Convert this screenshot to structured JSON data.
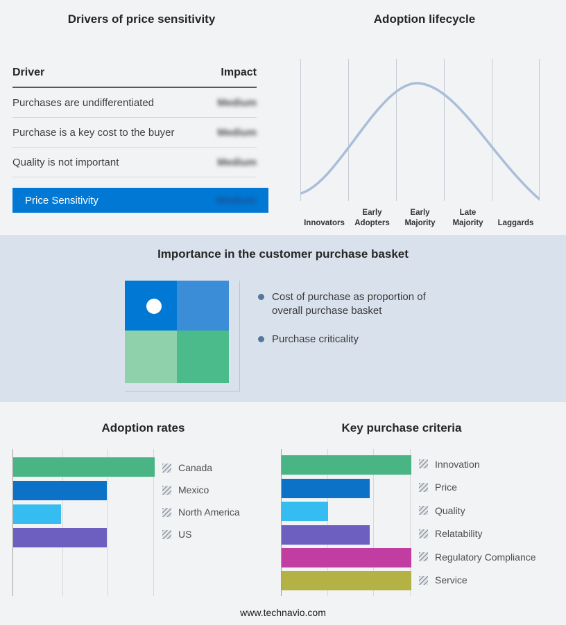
{
  "page": {
    "footer": "www.technavio.com"
  },
  "drivers": {
    "title": "Drivers of price sensitivity",
    "col_driver": "Driver",
    "col_impact": "Impact",
    "rows": [
      {
        "driver": "Purchases are undifferentiated",
        "impact": "Medium"
      },
      {
        "driver": "Purchase is a key cost to the buyer",
        "impact": "Medium"
      },
      {
        "driver": "Quality is not important",
        "impact": "Medium"
      }
    ],
    "summary": {
      "label": "Price Sensitivity",
      "impact": "Medium",
      "color": "#0078d4"
    }
  },
  "lifecycle": {
    "title": "Adoption lifecycle",
    "stages": [
      "Innovators",
      "Early Adopters",
      "Early Majority",
      "Late Majority",
      "Laggards"
    ],
    "curve_color": "#a9bed9"
  },
  "importance": {
    "title": "Importance in the customer purchase basket",
    "bullets": [
      "Cost of purchase as proportion of overall purchase basket",
      "Purchase criticality"
    ],
    "matrix": {
      "tl": "#0078d4",
      "tr": "#3a8dd6",
      "bl": "#8fd1ab",
      "br": "#4bbb8b"
    }
  },
  "adoption": {
    "title": "Adoption rates",
    "bars": [
      {
        "label": "Canada",
        "color": "#49b584",
        "pct": 100
      },
      {
        "label": "Mexico",
        "color": "#0b72c8",
        "pct": 66
      },
      {
        "label": "North America",
        "color": "#35bdf2",
        "pct": 34
      },
      {
        "label": "US",
        "color": "#6c5fbf",
        "pct": 66
      }
    ]
  },
  "criteria": {
    "title": "Key purchase criteria",
    "bars": [
      {
        "label": "Innovation",
        "color": "#49b584",
        "pct": 100
      },
      {
        "label": "Price",
        "color": "#0b72c8",
        "pct": 68
      },
      {
        "label": "Quality",
        "color": "#35bdf2",
        "pct": 36
      },
      {
        "label": "Relatability",
        "color": "#6c5fbf",
        "pct": 68
      },
      {
        "label": "Regulatory Compliance",
        "color": "#c13da1",
        "pct": 100
      },
      {
        "label": "Service",
        "color": "#b5b245",
        "pct": 100
      }
    ]
  },
  "chart_data": [
    {
      "type": "table",
      "title": "Drivers of price sensitivity",
      "columns": [
        "Driver",
        "Impact"
      ],
      "rows": [
        [
          "Purchases are undifferentiated",
          "Medium"
        ],
        [
          "Purchase is a key cost to the buyer",
          "Medium"
        ],
        [
          "Quality is not important",
          "Medium"
        ],
        [
          "Price Sensitivity",
          "Medium"
        ]
      ]
    },
    {
      "type": "line",
      "title": "Adoption lifecycle",
      "shape": "bell-curve",
      "categories": [
        "Innovators",
        "Early Adopters",
        "Early Majority",
        "Late Majority",
        "Laggards"
      ],
      "grid": true,
      "legend_position": "none"
    },
    {
      "type": "bar",
      "title": "Adoption rates",
      "orientation": "horizontal",
      "categories": [
        "Canada",
        "Mexico",
        "North America",
        "US"
      ],
      "values": [
        3,
        2,
        1,
        2
      ],
      "xlim": [
        0,
        3
      ],
      "grid": true,
      "legend_position": "right"
    },
    {
      "type": "bar",
      "title": "Key purchase criteria",
      "orientation": "horizontal",
      "categories": [
        "Innovation",
        "Price",
        "Quality",
        "Relatability",
        "Regulatory Compliance",
        "Service"
      ],
      "values": [
        3,
        2,
        1,
        2,
        3,
        3
      ],
      "xlim": [
        0,
        3
      ],
      "grid": true,
      "legend_position": "right"
    }
  ]
}
